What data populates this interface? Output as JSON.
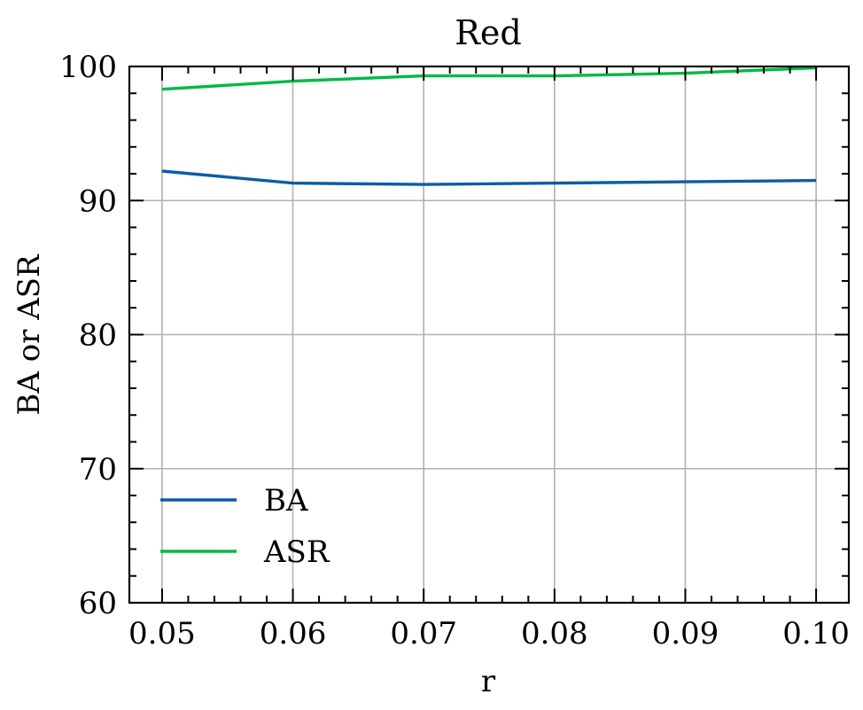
{
  "chart_data": {
    "type": "line",
    "title": "Red",
    "xlabel": "r",
    "ylabel": "BA or ASR",
    "x": [
      0.05,
      0.06,
      0.07,
      0.08,
      0.09,
      0.1
    ],
    "xlim": [
      0.0475,
      0.1025
    ],
    "ylim": [
      60,
      100
    ],
    "x_ticks": [
      0.05,
      0.06,
      0.07,
      0.08,
      0.09,
      0.1
    ],
    "x_tick_labels": [
      "0.05",
      "0.06",
      "0.07",
      "0.08",
      "0.09",
      "0.10"
    ],
    "y_ticks": [
      60,
      70,
      80,
      90,
      100
    ],
    "y_tick_labels": [
      "60",
      "70",
      "80",
      "90",
      "100"
    ],
    "grid": true,
    "legend_position": "lower-left",
    "series": [
      {
        "name": "BA",
        "color": "#0c5da5",
        "values": [
          92.2,
          91.3,
          91.2,
          91.3,
          91.4,
          91.5
        ]
      },
      {
        "name": "ASR",
        "color": "#00b945",
        "values": [
          98.3,
          98.9,
          99.3,
          99.3,
          99.5,
          99.9
        ]
      }
    ]
  }
}
